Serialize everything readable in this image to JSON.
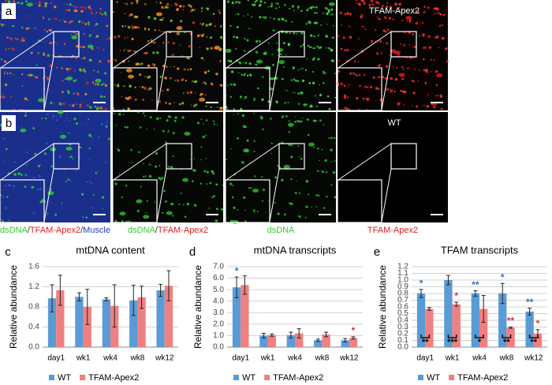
{
  "figure": {
    "rows": [
      {
        "label": "a",
        "tag": "TFAM-Apex2"
      },
      {
        "label": "b",
        "tag": "WT"
      }
    ],
    "channels": [
      [
        {
          "text": "dsDNA",
          "color": "#33cc33"
        },
        {
          "text": "/",
          "color": "#333333"
        },
        {
          "text": "TFAM-Apex2",
          "color": "#e02020"
        },
        {
          "text": "/",
          "color": "#333333"
        },
        {
          "text": "Muscle",
          "color": "#2040c0"
        }
      ],
      [
        {
          "text": "dsDNA",
          "color": "#33cc33"
        },
        {
          "text": "/",
          "color": "#333333"
        },
        {
          "text": "TFAM-Apex2",
          "color": "#e02020"
        }
      ],
      [
        {
          "text": "dsDNA",
          "color": "#33cc33"
        }
      ],
      [
        {
          "text": "TFAM-Apex2",
          "color": "#e02020"
        }
      ]
    ]
  },
  "chart_data": [
    {
      "type": "bar",
      "panel": "c",
      "title": "mtDNA content",
      "ylabel": "Relative abundance",
      "categories": [
        "day1",
        "wk1",
        "wk4",
        "wk8",
        "wk12"
      ],
      "series": [
        {
          "name": "WT",
          "color": "#5b9bd5",
          "values": [
            0.97,
            1.0,
            0.95,
            0.93,
            1.13
          ],
          "errors": [
            0.27,
            0.08,
            0.03,
            0.3,
            0.12
          ]
        },
        {
          "name": "TFAM-Apex2",
          "color": "#f08080",
          "values": [
            1.13,
            0.8,
            0.82,
            0.99,
            1.22
          ],
          "errors": [
            0.3,
            0.35,
            0.42,
            0.22,
            0.3
          ]
        }
      ],
      "ylim": [
        0,
        1.6
      ],
      "yticks": [
        {
          "value": 0,
          "label": "0.0"
        },
        0.4,
        0.8,
        1.2,
        1.6
      ],
      "grid": true,
      "legend": "bottom"
    },
    {
      "type": "bar",
      "panel": "d",
      "title": "mtDNA transcripts",
      "ylabel": "Relative abundance",
      "categories": [
        "day1",
        "wk1",
        "wk4",
        "wk8",
        "wk12"
      ],
      "series": [
        {
          "name": "WT",
          "color": "#5b9bd5",
          "values": [
            5.2,
            1.0,
            1.05,
            0.6,
            0.6
          ],
          "errors": [
            0.9,
            0.2,
            0.25,
            0.1,
            0.15
          ],
          "significance": [
            "*",
            null,
            null,
            null,
            null
          ]
        },
        {
          "name": "TFAM-Apex2",
          "color": "#f08080",
          "values": [
            5.4,
            1.05,
            1.2,
            1.1,
            0.8
          ],
          "errors": [
            0.8,
            0.1,
            0.4,
            0.2,
            0.1
          ],
          "significance": [
            null,
            null,
            null,
            null,
            "*"
          ]
        }
      ],
      "ylim": [
        0,
        7
      ],
      "yticks": [
        {
          "value": 0,
          "label": "0.0"
        },
        {
          "value": 1,
          "label": "1.0"
        },
        {
          "value": 2,
          "label": "2.0"
        },
        {
          "value": 3,
          "label": "3.0"
        },
        {
          "value": 4,
          "label": "4.0"
        },
        {
          "value": 5,
          "label": "5.0"
        },
        {
          "value": 6,
          "label": "6.0"
        },
        {
          "value": 7,
          "label": "7.0"
        }
      ],
      "grid": true,
      "legend": "bottom"
    },
    {
      "type": "bar",
      "panel": "e",
      "title": "TFAM transcripts",
      "ylabel": "Relative abundance",
      "categories": [
        "day1",
        "wk1",
        "wk4",
        "wk8",
        "wk12"
      ],
      "series": [
        {
          "name": "WT",
          "color": "#5b9bd5",
          "values": [
            0.8,
            1.0,
            0.8,
            0.8,
            0.53
          ],
          "errors": [
            0.06,
            0.07,
            0.04,
            0.15,
            0.05
          ],
          "significance": [
            "*",
            null,
            "**",
            "*",
            "**"
          ]
        },
        {
          "name": "TFAM-Apex2",
          "color": "#f08080",
          "values": [
            0.57,
            0.64,
            0.57,
            0.29,
            0.2
          ],
          "errors": [
            0.02,
            0.03,
            0.2,
            0.01,
            0.06
          ],
          "significance": [
            null,
            "*",
            null,
            "**",
            "*"
          ]
        }
      ],
      "pair_significance": [
        "**",
        "***",
        "*",
        "**",
        "**"
      ],
      "ylim": [
        0,
        1.2
      ],
      "yticks": [
        {
          "value": 0,
          "label": "0.0"
        },
        0.1,
        0.2,
        0.3,
        0.4,
        0.5,
        0.6,
        0.7,
        0.8,
        0.9,
        {
          "value": 1,
          "label": "1.0"
        },
        1.1,
        1.2
      ],
      "grid": true,
      "legend": "bottom"
    }
  ]
}
